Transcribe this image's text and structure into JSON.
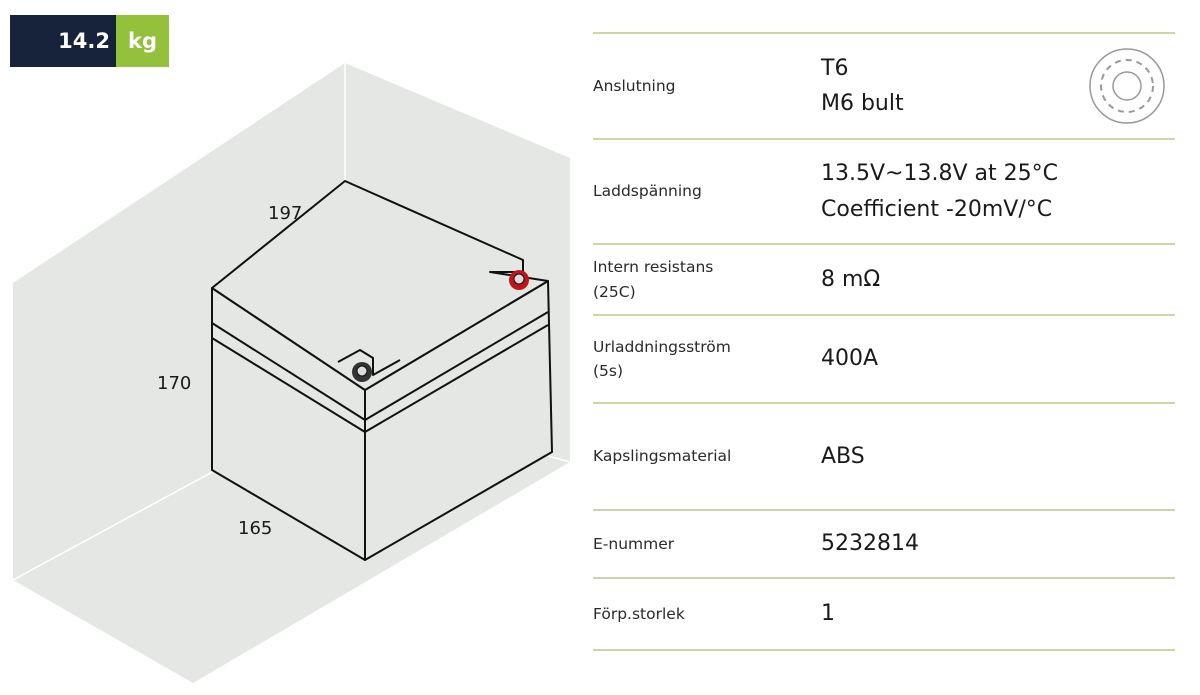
{
  "weight": {
    "value": "14.2",
    "unit": "kg"
  },
  "dimensions": {
    "length": "197",
    "height": "170",
    "width": "165"
  },
  "specs": [
    {
      "label": [
        "Anslutning"
      ],
      "value": [
        "T6",
        "M6 bult"
      ],
      "icon": "terminal-bolt-icon"
    },
    {
      "label": [
        "Laddspänning"
      ],
      "value": [
        "13.5V~13.8V at 25°C",
        "Coefficient -20mV/°C"
      ]
    },
    {
      "label": [
        "Intern resistans",
        "(25C)"
      ],
      "value": [
        "8 mΩ"
      ]
    },
    {
      "label": [
        "Urladdningsström",
        "(5s)"
      ],
      "value": [
        "400A"
      ]
    },
    {
      "label": [
        "Kapslingsmaterial"
      ],
      "value": [
        "ABS"
      ]
    },
    {
      "label": [
        "E-nummer"
      ],
      "value": [
        "5232814"
      ]
    },
    {
      "label": [
        "Förp.storlek"
      ],
      "value": [
        "1"
      ]
    }
  ],
  "colors": {
    "navy": "#16233a",
    "green": "#93c13b",
    "divider": "#cbd7a4",
    "positive_terminal": "#c0141c"
  }
}
